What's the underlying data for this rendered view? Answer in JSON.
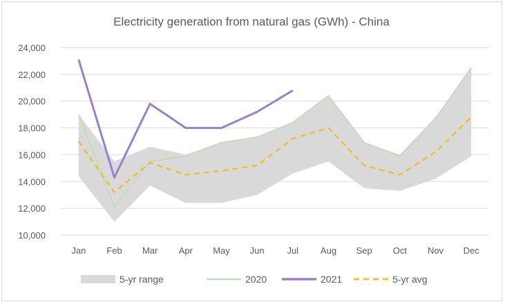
{
  "chart_data": {
    "type": "line",
    "title": "Electricity generation from natural gas (GWh) - China",
    "xlabel": "",
    "ylabel": "",
    "categories": [
      "Jan",
      "Feb",
      "Mar",
      "Apr",
      "May",
      "Jun",
      "Jul",
      "Aug",
      "Sep",
      "Oct",
      "Nov",
      "Dec"
    ],
    "ylim": [
      10000,
      24000
    ],
    "yticks": [
      10000,
      12000,
      14000,
      16000,
      18000,
      20000,
      22000,
      24000
    ],
    "ytick_labels": [
      "10,000",
      "12,000",
      "14,000",
      "16,000",
      "18,000",
      "20,000",
      "22,000",
      "24,000"
    ],
    "grid": true,
    "legend_position": "bottom",
    "range": {
      "name": "5-yr range",
      "min": [
        14400,
        11000,
        13700,
        12400,
        12400,
        13000,
        14600,
        15500,
        13500,
        13300,
        14200,
        15900
      ],
      "max": [
        19000,
        15500,
        16600,
        16000,
        16900,
        17300,
        18400,
        20400,
        16900,
        16000,
        18800,
        22500
      ]
    },
    "series": [
      {
        "name": "2020",
        "values": [
          19000,
          12100,
          15500,
          15900,
          16900,
          17300,
          18400,
          20400,
          16900,
          15900,
          18700,
          22500
        ]
      },
      {
        "name": "2021",
        "values": [
          23100,
          14300,
          19800,
          18000,
          18000,
          19200,
          20800,
          null,
          null,
          null,
          null,
          null
        ]
      },
      {
        "name": "5-yr avg",
        "values": [
          17000,
          13200,
          15400,
          14500,
          14800,
          15200,
          17200,
          18000,
          15200,
          14500,
          16200,
          18800
        ]
      }
    ],
    "colors": {
      "range": "#d9d9d9",
      "2020": "#c5dcb8",
      "2021": "#9b7fcf",
      "5-yr avg": "#f2bb1e",
      "grid": "#d9d9d9",
      "text": "#595959"
    }
  }
}
